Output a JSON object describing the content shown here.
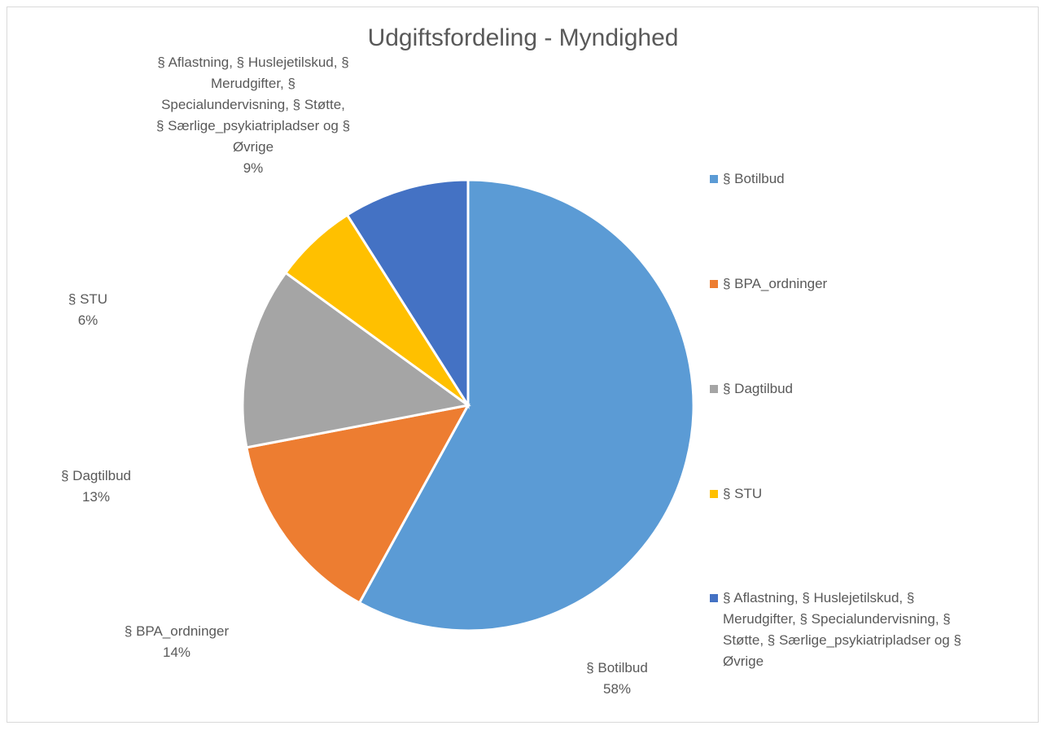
{
  "chart_data": {
    "type": "pie",
    "title": "Udgiftsfordeling - Myndighed",
    "categories": [
      "§ Botilbud",
      "§ BPA_ordninger",
      "§ Dagtilbud",
      "§ STU",
      "§ Aflastning, § Huslejetilskud, § Merudgifter, § Specialundervisning, § Støtte, § Særlige_psykiatripladser og § Øvrige"
    ],
    "values": [
      58,
      14,
      13,
      6,
      9
    ],
    "value_labels": [
      "58%",
      "14%",
      "13%",
      "6%",
      "9%"
    ],
    "colors": [
      "#5b9bd5",
      "#ed7d31",
      "#a5a5a5",
      "#ffc000",
      "#4472c4"
    ],
    "legend": "right"
  }
}
